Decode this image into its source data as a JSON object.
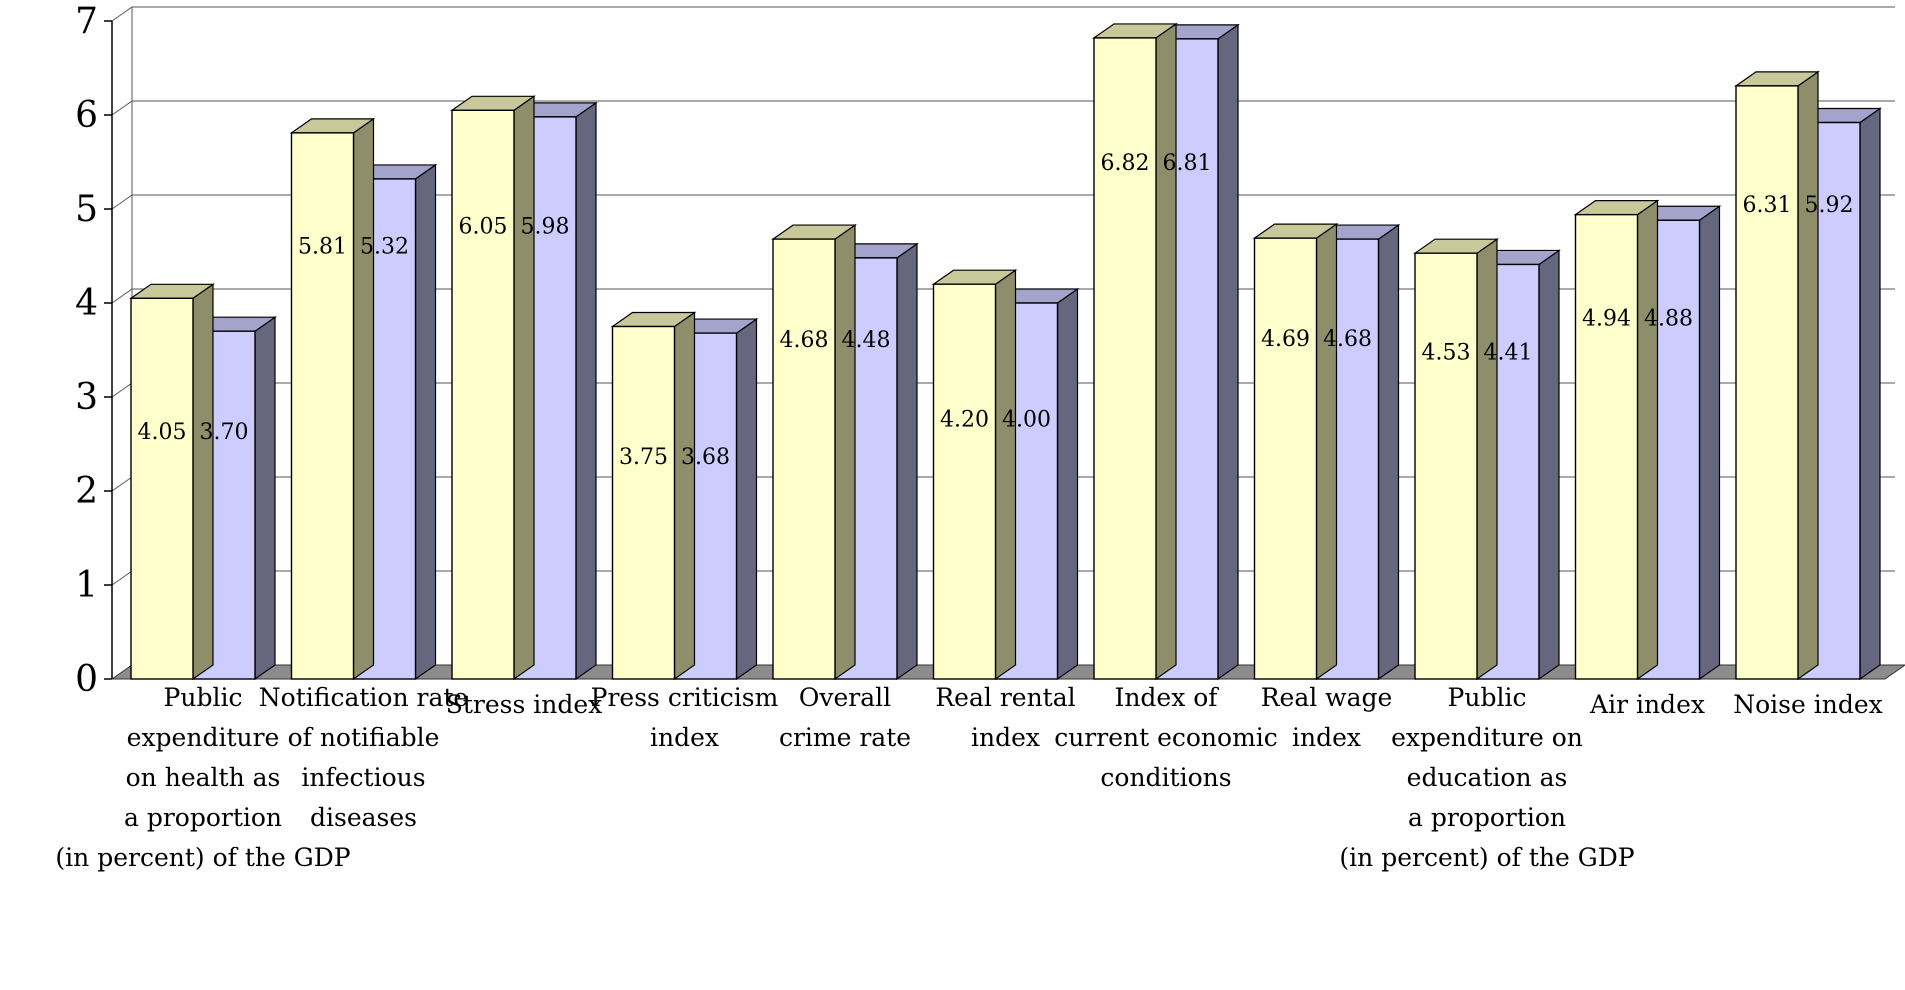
{
  "chart_data": {
    "type": "bar",
    "title": "",
    "xlabel": "",
    "ylabel": "",
    "ylim": [
      0,
      7
    ],
    "yticks": [
      "0",
      "1",
      "2",
      "3",
      "4",
      "5",
      "6",
      "7"
    ],
    "grid": true,
    "style": "3d-clustered",
    "colors": {
      "series1_front": "#ffffcc",
      "series1_top": "#c8c89a",
      "series1_side": "#8e8e6a",
      "series2_front": "#ccccff",
      "series2_top": "#a3a3cc",
      "series2_side": "#66667f",
      "floor": "#8c8c8c"
    },
    "categories": [
      [
        "Public",
        "expenditure",
        "on health as",
        "a proportion",
        "(in percent) of the GDP"
      ],
      [
        "Notification rate",
        "of notifiable",
        "infectious",
        "diseases"
      ],
      [
        "Stress index"
      ],
      [
        "Press criticism",
        "index"
      ],
      [
        "Overall",
        "crime rate"
      ],
      [
        "Real rental",
        "index"
      ],
      [
        "Index of",
        "current economic",
        "conditions"
      ],
      [
        "Real wage",
        "index"
      ],
      [
        "Public",
        "expenditure on",
        "education as",
        "a proportion",
        "(in percent) of the GDP"
      ],
      [
        "Air index"
      ],
      [
        "Noise index"
      ]
    ],
    "series": [
      {
        "values": [
          4.05,
          5.81,
          6.05,
          3.75,
          4.68,
          4.2,
          6.82,
          4.69,
          4.53,
          4.94,
          6.31
        ],
        "labels": [
          "4.05",
          "5.81",
          "6.05",
          "3.75",
          "4.68",
          "4.20",
          "6.82",
          "4.69",
          "4.53",
          "4.94",
          "6.31"
        ]
      },
      {
        "values": [
          3.7,
          5.32,
          5.98,
          3.68,
          4.48,
          4.0,
          6.81,
          4.68,
          4.41,
          4.88,
          5.92
        ],
        "labels": [
          "3.70",
          "5.32",
          "5.98",
          "3.68",
          "4.48",
          "4.00",
          "6.81",
          "4.68",
          "4.41",
          "4.88",
          "5.92"
        ]
      }
    ]
  }
}
